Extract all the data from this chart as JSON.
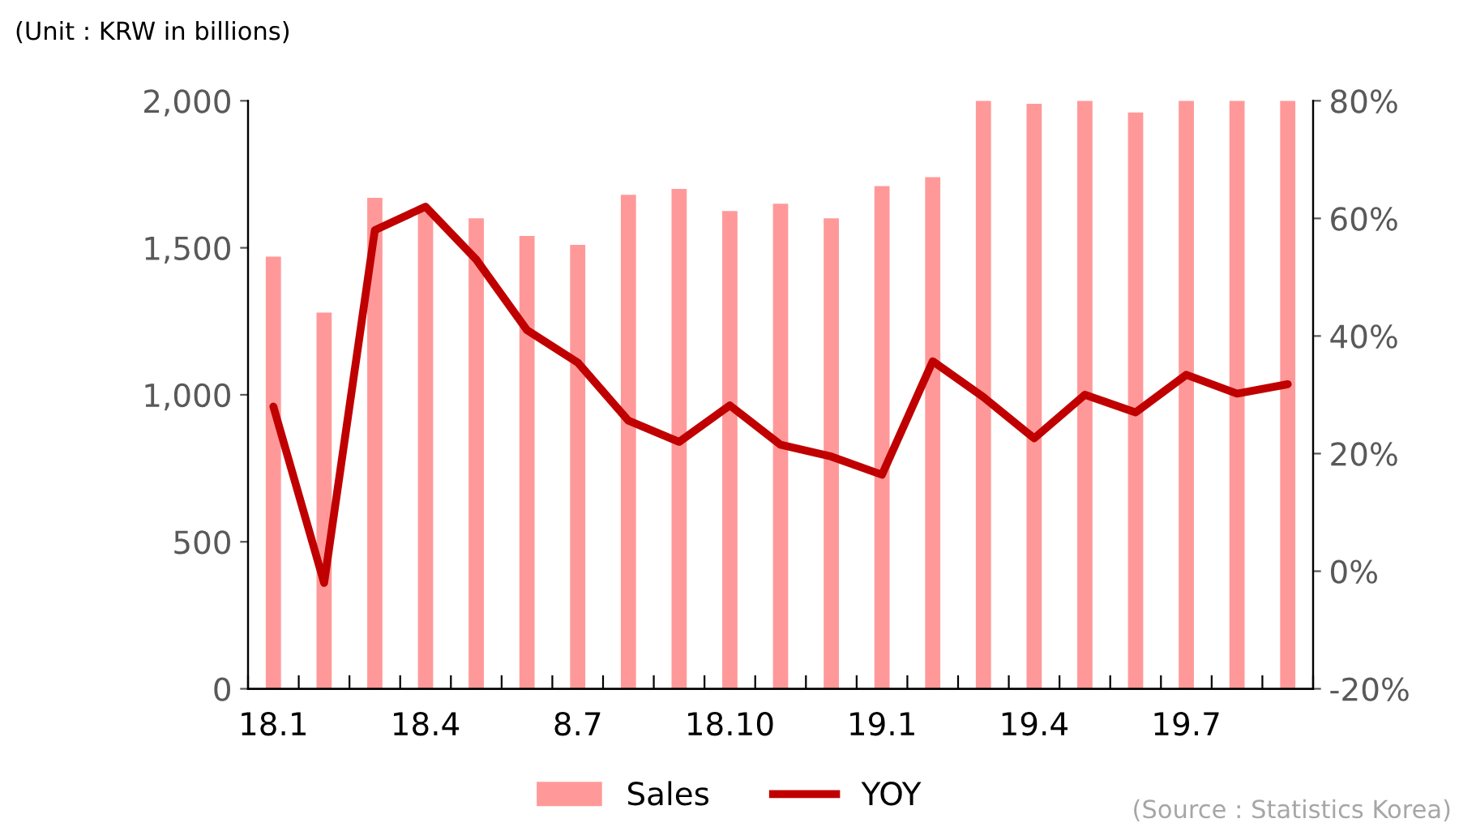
{
  "chart_data": {
    "type": "bar",
    "categories": [
      "18.1",
      null,
      null,
      "18.4",
      null,
      null,
      "8.7",
      null,
      null,
      "18.10",
      null,
      null,
      "19.1",
      null,
      null,
      "19.4",
      null,
      null,
      "19.7",
      null,
      null
    ],
    "series": [
      {
        "name": "Sales",
        "color": "#ff9999",
        "values": [
          1470,
          1280,
          1670,
          1630,
          1600,
          1540,
          1510,
          1680,
          1700,
          1625,
          1650,
          1600,
          1710,
          1740,
          2000,
          1990,
          2000,
          1960,
          2000,
          2000,
          2000
        ]
      },
      {
        "name": "YOY",
        "type": "line",
        "axis": "y2",
        "color": "#c00000",
        "values": [
          28,
          -2,
          58,
          62,
          53,
          41,
          35.5,
          25.6,
          22,
          28.2,
          21.5,
          19.5,
          16.4,
          35.7,
          29.6,
          22.6,
          30,
          27,
          33.4,
          30.2,
          31.8
        ]
      }
    ],
    "ylim": [
      0,
      2000
    ],
    "yticks": [
      0,
      500,
      {
        "value": 1000,
        "label": "1,000"
      },
      {
        "value": 1500,
        "label": "1,500"
      },
      {
        "value": 2000,
        "label": "2,000"
      }
    ],
    "y2lim": [
      -20,
      80
    ],
    "y2ticks": [
      {
        "value": -20,
        "label": "-20%"
      },
      {
        "value": 0,
        "label": "0%"
      },
      {
        "value": 20,
        "label": "20%"
      },
      {
        "value": 40,
        "label": "40%"
      },
      {
        "value": 60,
        "label": "60%"
      },
      {
        "value": 80,
        "label": "80%"
      }
    ],
    "grid": false,
    "legend": "bottom",
    "annotations": [
      "(Unit : KRW in billions)",
      "(Source : Statistics Korea)"
    ]
  }
}
